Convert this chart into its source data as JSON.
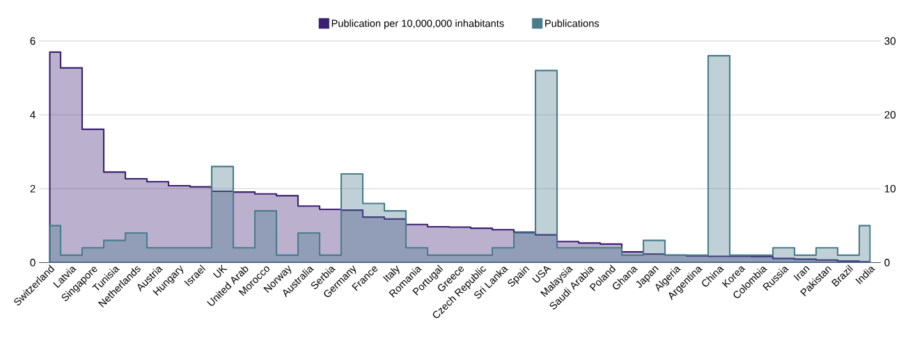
{
  "chart_data": {
    "type": "area",
    "categories": [
      "Switzerland",
      "Latvia",
      "Singapore",
      "Tunisia",
      "Netherlands",
      "Austria",
      "Hungary",
      "Israel",
      "UK",
      "United Arab",
      "Morocco",
      "Norway",
      "Australia",
      "Serbia",
      "Germany",
      "France",
      "Italy",
      "Romania",
      "Portugal",
      "Greece",
      "Czech Republic",
      "Sri Lanka",
      "Spain",
      "USA",
      "Malaysia",
      "Saudi Arabia",
      "Poland",
      "Ghana",
      "Japan",
      "Algeria",
      "Argentina",
      "China",
      "Korea",
      "Colombia",
      "Russia",
      "Iran",
      "Pakistan",
      "Brazil",
      "India"
    ],
    "series": [
      {
        "name": "Publication per 10,000,000 inhabitants",
        "color": "#3b1f72",
        "values": [
          5.7,
          5.27,
          3.61,
          2.45,
          2.27,
          2.19,
          2.08,
          2.05,
          1.93,
          1.91,
          1.86,
          1.81,
          1.53,
          1.44,
          1.42,
          1.23,
          1.18,
          1.03,
          0.97,
          0.96,
          0.93,
          0.89,
          0.82,
          0.75,
          0.57,
          0.53,
          0.5,
          0.29,
          0.23,
          0.2,
          0.18,
          0.17,
          0.17,
          0.16,
          0.11,
          0.09,
          0.07,
          0.04,
          0.02
        ]
      },
      {
        "name": "Publications",
        "color": "#497c8b",
        "axis": "y2",
        "values": [
          5,
          1,
          2,
          3,
          4,
          2,
          2,
          2,
          13,
          2,
          7,
          1,
          4,
          1,
          12,
          8,
          7,
          2,
          1,
          1,
          1,
          2,
          4,
          26,
          2,
          2,
          2,
          1,
          3,
          1,
          1,
          28,
          1,
          1,
          2,
          1,
          2,
          1,
          5
        ]
      }
    ],
    "ylim": [
      0,
      6
    ],
    "yticks": [
      0,
      2,
      4,
      6
    ],
    "y2lim": [
      0,
      30
    ],
    "y2ticks": [
      0,
      10,
      20,
      30
    ],
    "grid": "y",
    "legend": "top"
  }
}
